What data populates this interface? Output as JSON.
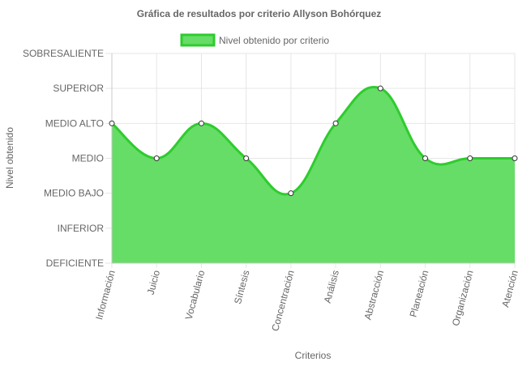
{
  "chart_data": {
    "type": "area",
    "title": "Gráfica de resultados por criterio Allyson Bohórquez",
    "xlabel": "Criterios",
    "ylabel": "Nivel obtenido",
    "categories": [
      "Información",
      "Juicio",
      "Vocabulario",
      "Síntesis",
      "Concentración",
      "Análisis",
      "Abstracción",
      "Planeación",
      "Organización",
      "Atención"
    ],
    "y_levels": [
      "DEFICIENTE",
      "INFERIOR",
      "MEDIO BAJO",
      "MEDIO",
      "MEDIO ALTO",
      "SUPERIOR",
      "SOBRESALIENTE"
    ],
    "ylim": [
      0,
      6
    ],
    "series": [
      {
        "name": "Nivel obtenido por criterio",
        "values": [
          4,
          3,
          4,
          3,
          2,
          4,
          5,
          3,
          3,
          3
        ]
      }
    ],
    "legend_position": "top",
    "grid": true,
    "colors": {
      "line": "#2ecc2e",
      "fill": "#66dd66",
      "point_fill": "#ffffff",
      "point_stroke": "#333333"
    }
  }
}
